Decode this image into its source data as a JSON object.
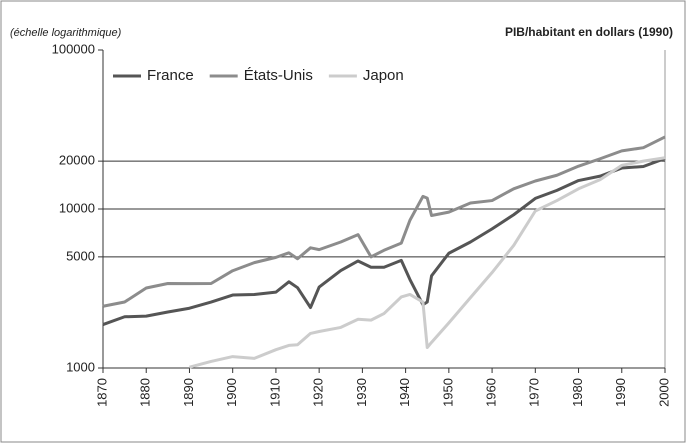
{
  "chart_data": {
    "type": "line",
    "title": "PIB/habitant en dollars (1990)",
    "subtitle": "(échelle logarithmique)",
    "log_scale": true,
    "grid": true,
    "legend": "top-left",
    "x": [
      1870,
      1875,
      1880,
      1885,
      1890,
      1895,
      1900,
      1905,
      1910,
      1913,
      1915,
      1918,
      1920,
      1925,
      1929,
      1932,
      1935,
      1939,
      1941,
      1944,
      1945,
      1946,
      1950,
      1955,
      1960,
      1965,
      1970,
      1975,
      1980,
      1985,
      1990,
      1995,
      2000
    ],
    "series": [
      {
        "name": "France",
        "color": "#555555",
        "values": [
          1876,
          2100,
          2120,
          2250,
          2376,
          2600,
          2876,
          2900,
          3000,
          3485,
          3200,
          2400,
          3227,
          4100,
          4710,
          4300,
          4300,
          4750,
          3600,
          2500,
          2600,
          3800,
          5270,
          6200,
          7500,
          9200,
          11660,
          13100,
          15100,
          16100,
          18093,
          18500,
          20800
        ]
      },
      {
        "name": "États-Unis",
        "color": "#8c8c8c",
        "values": [
          2445,
          2600,
          3184,
          3400,
          3392,
          3400,
          4091,
          4600,
          4964,
          5301,
          4864,
          5700,
          5552,
          6200,
          6899,
          5000,
          5500,
          6100,
          8500,
          12000,
          11700,
          9100,
          9561,
          10900,
          11300,
          13400,
          15000,
          16300,
          18600,
          20700,
          23200,
          24300,
          28400
        ]
      },
      {
        "name": "Japon",
        "color": "#cccccc",
        "values": [
          null,
          null,
          null,
          null,
          1012,
          1100,
          1180,
          1150,
          1304,
          1387,
          1400,
          1650,
          1696,
          1800,
          2026,
          2000,
          2200,
          2800,
          2900,
          2600,
          1346,
          1450,
          1921,
          2770,
          3986,
          5900,
          9714,
          11300,
          13400,
          15300,
          18800,
          20000,
          21000
        ]
      }
    ],
    "xlim": [
      1870,
      2000
    ],
    "xticks": [
      1870,
      1880,
      1890,
      1900,
      1910,
      1920,
      1930,
      1940,
      1950,
      1960,
      1970,
      1980,
      1990,
      2000
    ],
    "ylim": [
      1000,
      100000
    ],
    "yticks": [
      1000,
      5000,
      10000,
      20000,
      100000
    ]
  }
}
